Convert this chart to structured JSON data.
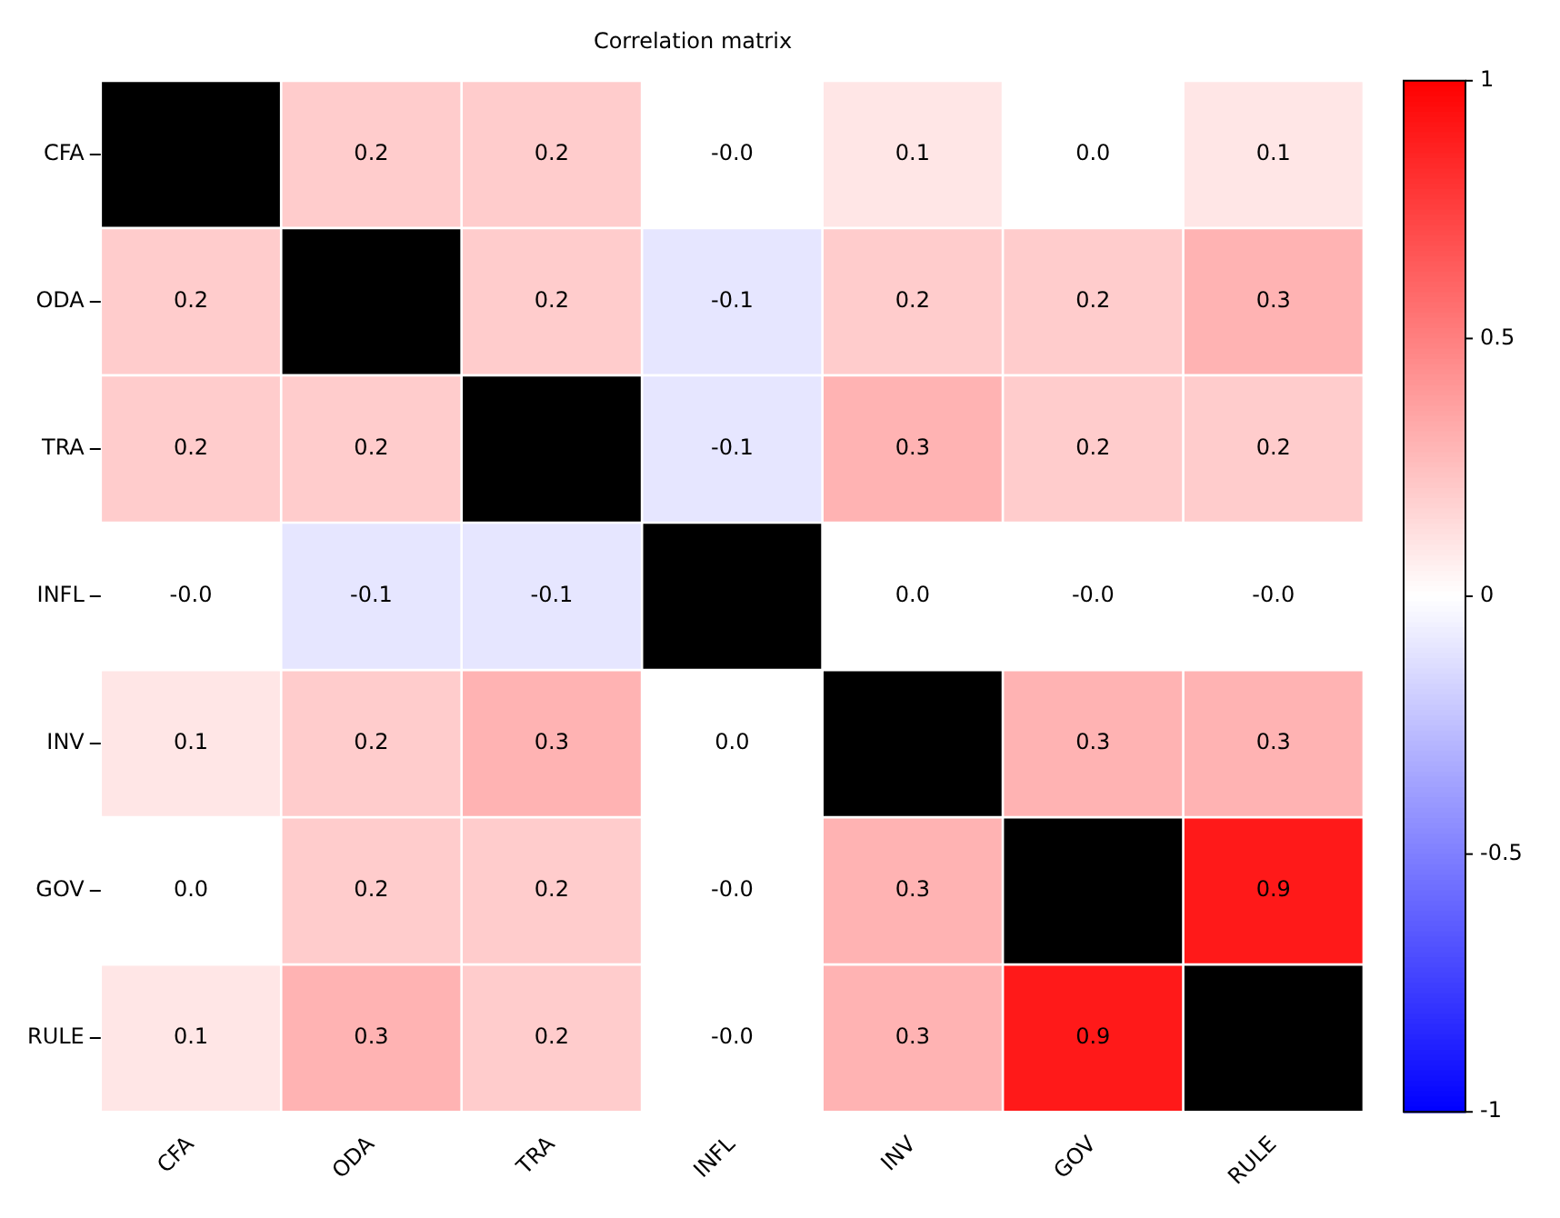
{
  "chart_data": {
    "type": "heatmap",
    "title": "Correlation matrix",
    "categories": [
      "CFA",
      "ODA",
      "TRA",
      "INFL",
      "INV",
      "GOV",
      "RULE"
    ],
    "y_categories": [
      "CFA",
      "ODA",
      "TRA",
      "INFL",
      "INV",
      "GOV",
      "RULE"
    ],
    "cells": [
      [
        null,
        0.2,
        0.2,
        -0.0,
        0.1,
        0.0,
        0.1
      ],
      [
        0.2,
        null,
        0.2,
        -0.1,
        0.2,
        0.2,
        0.3
      ],
      [
        0.2,
        0.2,
        null,
        -0.1,
        0.3,
        0.2,
        0.2
      ],
      [
        -0.0,
        -0.1,
        -0.1,
        null,
        0.0,
        -0.0,
        -0.0
      ],
      [
        0.1,
        0.2,
        0.3,
        0.0,
        null,
        0.3,
        0.3
      ],
      [
        0.0,
        0.2,
        0.2,
        -0.0,
        0.3,
        null,
        0.9
      ],
      [
        0.1,
        0.3,
        0.2,
        -0.0,
        0.3,
        0.9,
        null
      ]
    ],
    "cell_labels": [
      [
        null,
        "0.2",
        "0.2",
        "-0.0",
        "0.1",
        "0.0",
        "0.1"
      ],
      [
        "0.2",
        null,
        "0.2",
        "-0.1",
        "0.2",
        "0.2",
        "0.3"
      ],
      [
        "0.2",
        "0.2",
        null,
        "-0.1",
        "0.3",
        "0.2",
        "0.2"
      ],
      [
        "-0.0",
        "-0.1",
        "-0.1",
        null,
        "0.0",
        "-0.0",
        "-0.0"
      ],
      [
        "0.1",
        "0.2",
        "0.3",
        "0.0",
        null,
        "0.3",
        "0.3"
      ],
      [
        "0.0",
        "0.2",
        "0.2",
        "-0.0",
        "0.3",
        null,
        "0.9"
      ],
      [
        "0.1",
        "0.3",
        "0.2",
        "-0.0",
        "0.3",
        "0.9",
        null
      ]
    ],
    "clim": [
      -1,
      1
    ],
    "cticks": [
      -1,
      -0.5,
      0,
      0.5,
      1
    ]
  }
}
